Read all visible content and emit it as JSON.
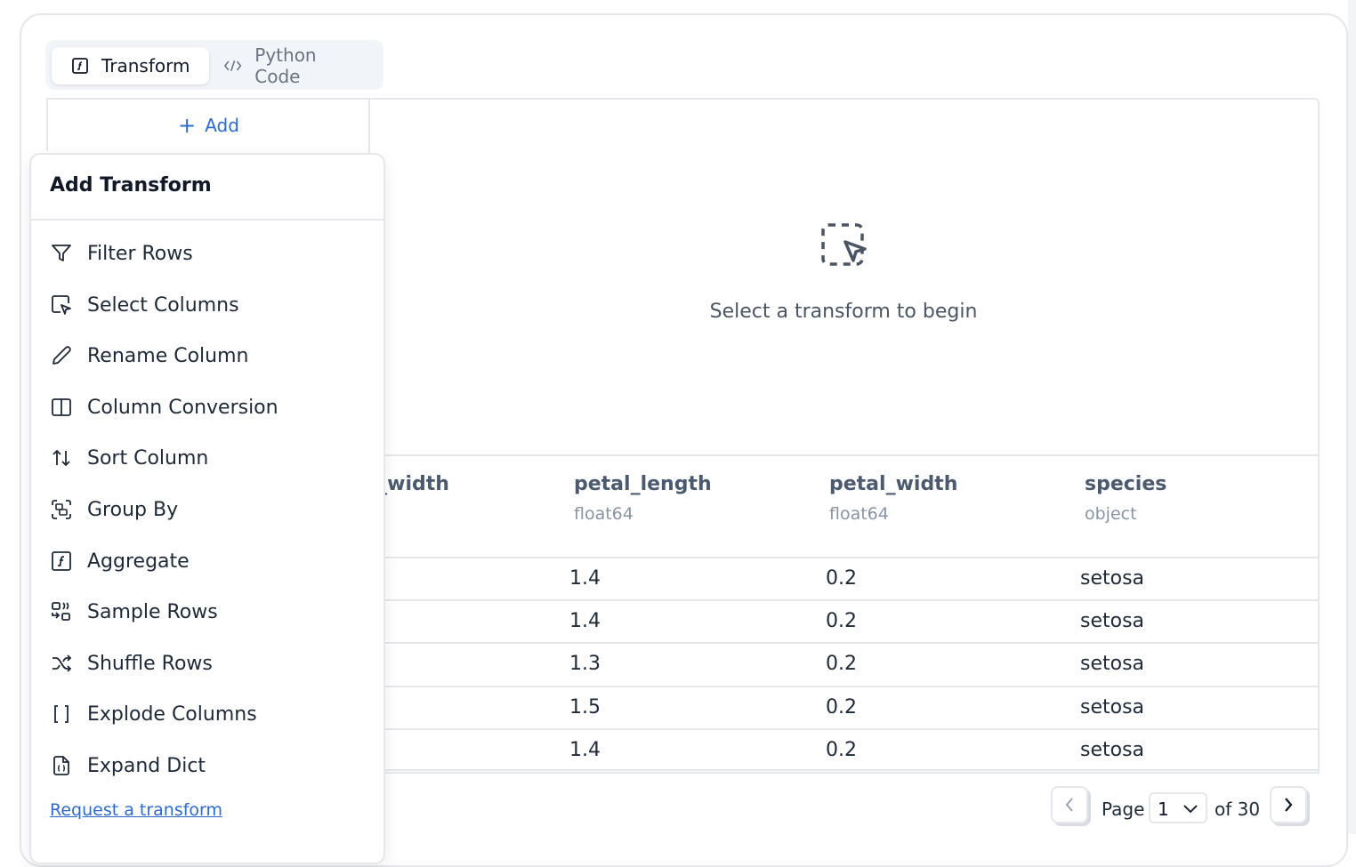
{
  "tabs": [
    {
      "label": "Transform",
      "icon": "function-icon",
      "active": true
    },
    {
      "label": "Python Code",
      "icon": "code-icon",
      "active": false
    }
  ],
  "add_button": "Add",
  "empty_state": {
    "icon": "dashed-select-cursor-icon",
    "text": "Select a transform to begin"
  },
  "table": {
    "columns": [
      {
        "name": "sepal_width",
        "type": ""
      },
      {
        "name": "petal_length",
        "type": "float64"
      },
      {
        "name": "petal_width",
        "type": "float64"
      },
      {
        "name": "species",
        "type": "object"
      }
    ],
    "rows": [
      [
        "1.4",
        "0.2",
        "setosa"
      ],
      [
        "1.4",
        "0.2",
        "setosa"
      ],
      [
        "1.3",
        "0.2",
        "setosa"
      ],
      [
        "1.5",
        "0.2",
        "setosa"
      ],
      [
        "1.4",
        "0.2",
        "setosa"
      ]
    ]
  },
  "dropdown": {
    "title": "Add Transform",
    "items": [
      {
        "label": "Filter Rows",
        "icon": "filter-icon"
      },
      {
        "label": "Select Columns",
        "icon": "select-columns-icon"
      },
      {
        "label": "Rename Column",
        "icon": "pencil-icon"
      },
      {
        "label": "Column Conversion",
        "icon": "columns-icon"
      },
      {
        "label": "Sort Column",
        "icon": "sort-arrows-icon"
      },
      {
        "label": "Group By",
        "icon": "group-icon"
      },
      {
        "label": "Aggregate",
        "icon": "function-icon"
      },
      {
        "label": "Sample Rows",
        "icon": "sample-icon"
      },
      {
        "label": "Shuffle Rows",
        "icon": "shuffle-icon"
      },
      {
        "label": "Explode Columns",
        "icon": "brackets-icon"
      },
      {
        "label": "Expand Dict",
        "icon": "file-braces-icon"
      }
    ],
    "link": "Request a transform"
  },
  "pagination": {
    "label": "Page",
    "current": "1",
    "of": "of 30"
  },
  "colors": {
    "accent": "#2d6bd0",
    "border": "#e5e7eb"
  }
}
